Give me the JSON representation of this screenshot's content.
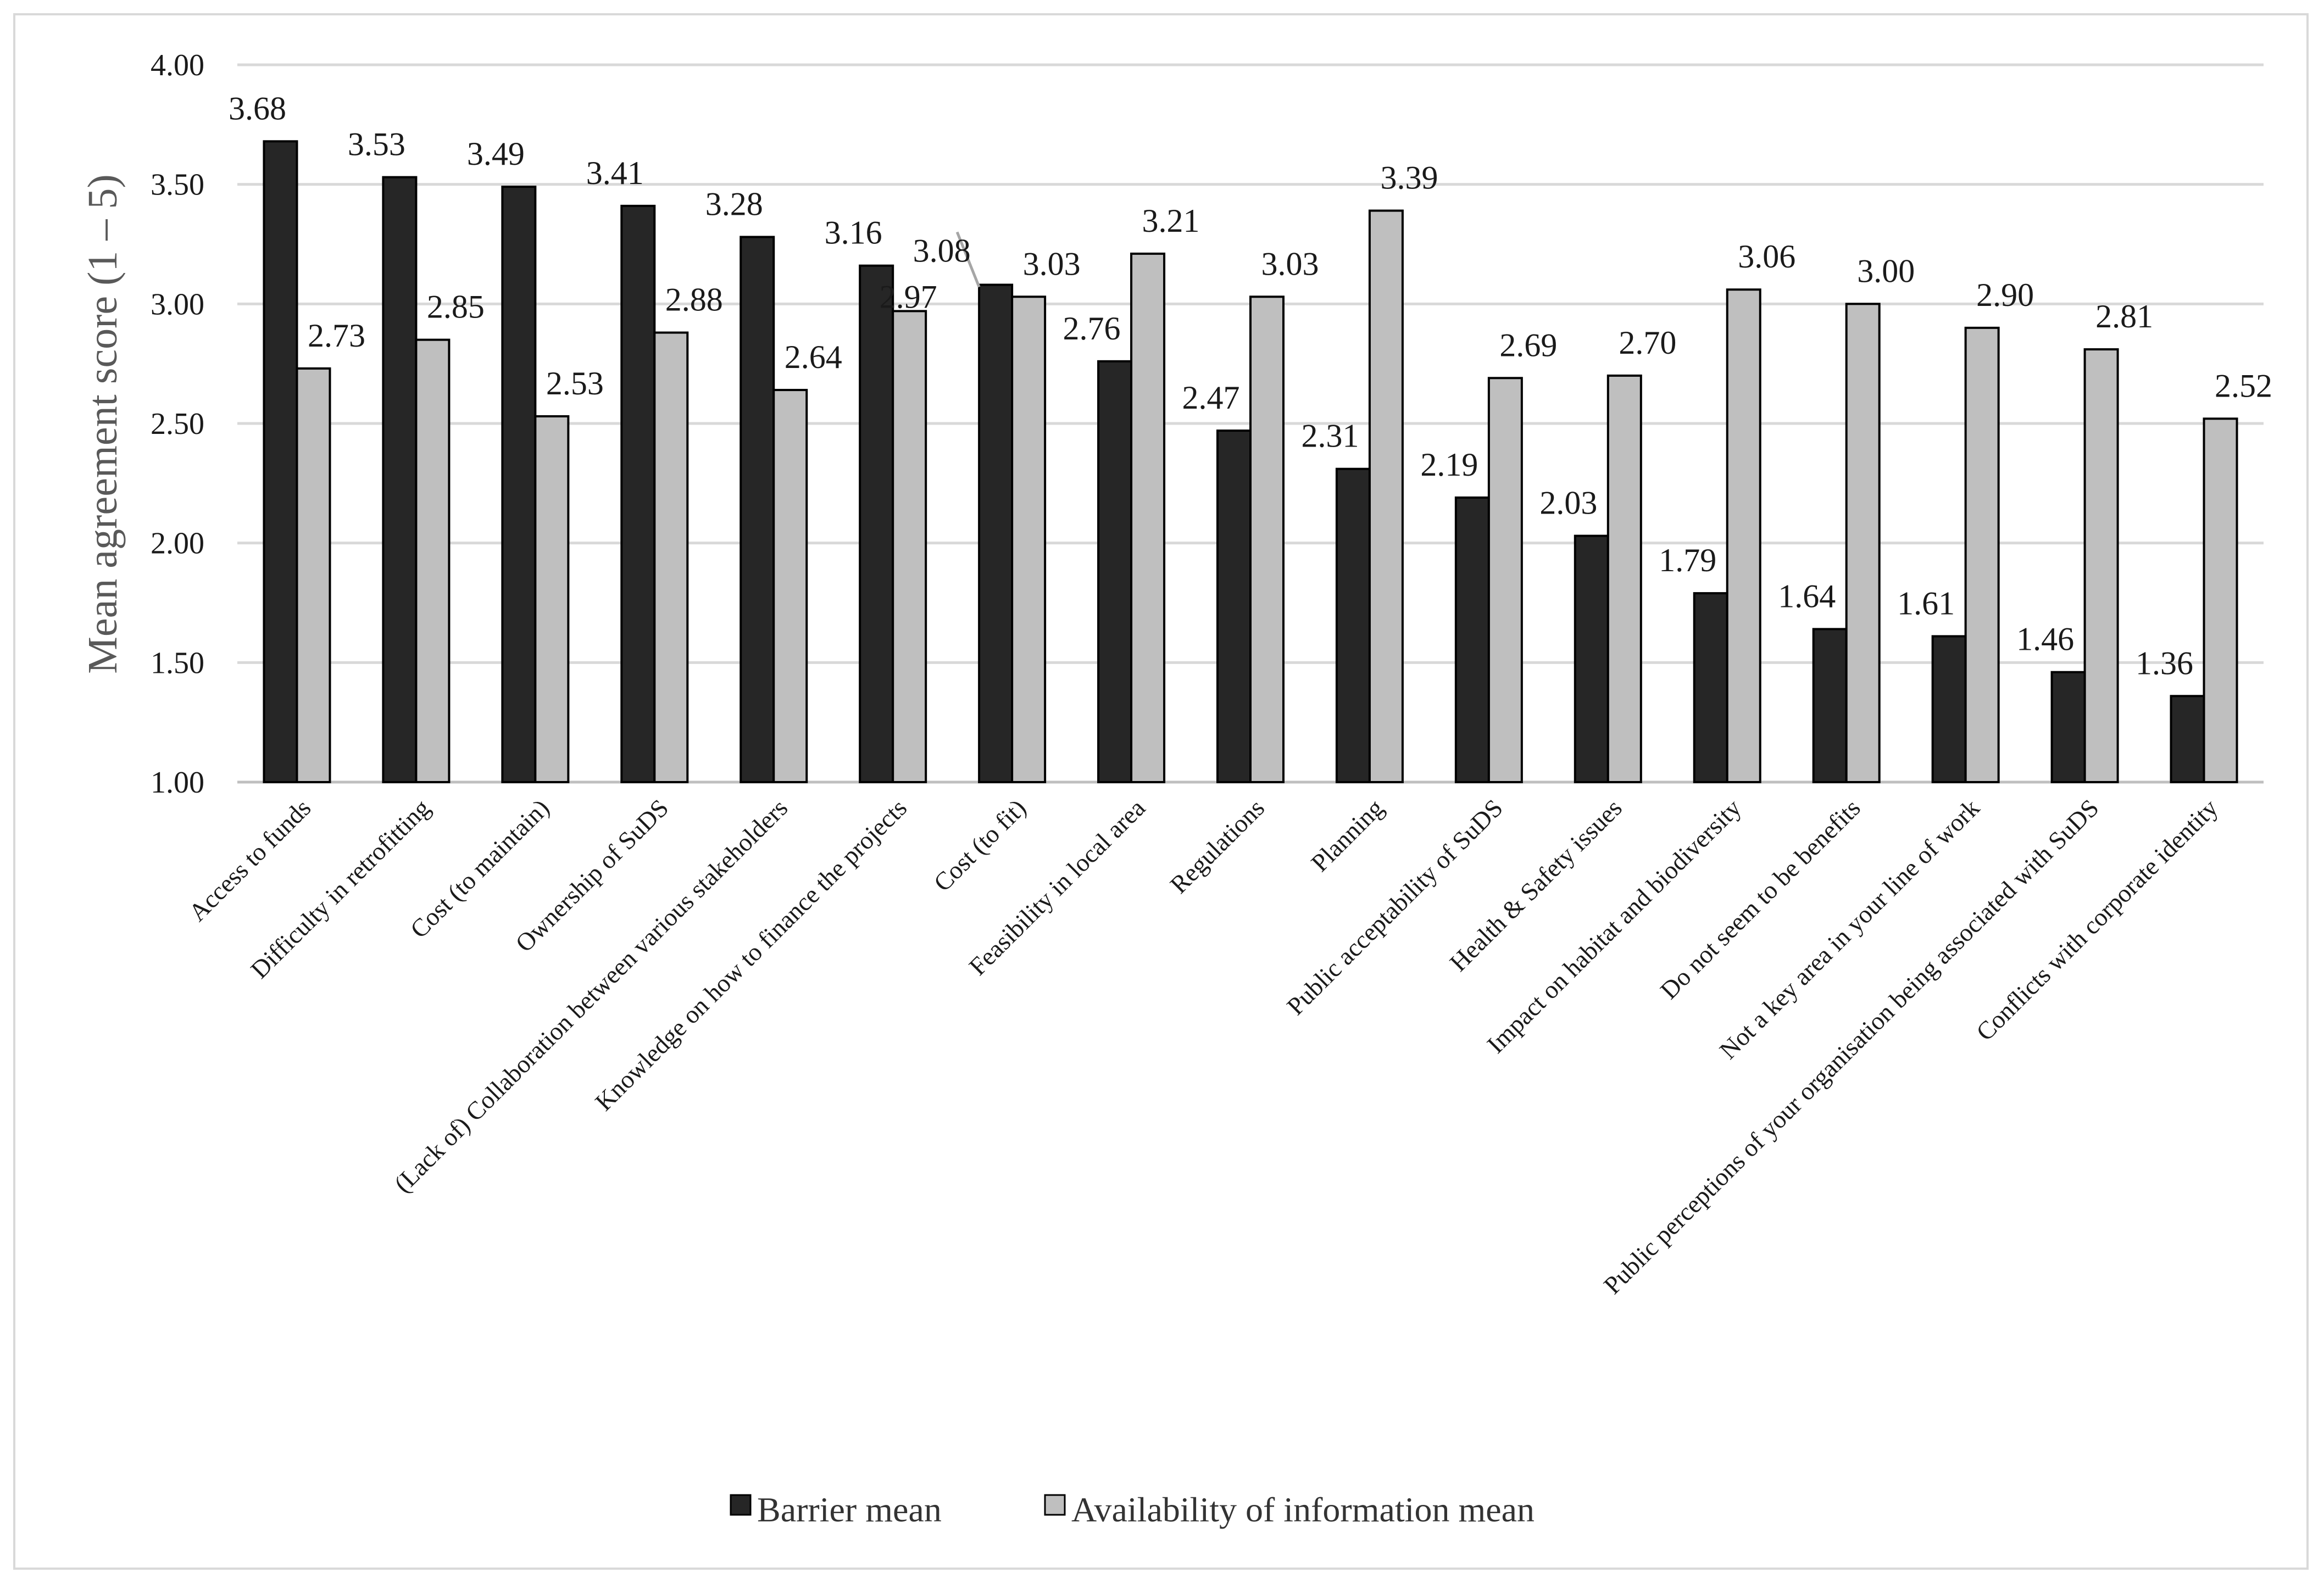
{
  "chart_data": {
    "type": "bar",
    "title": "",
    "xlabel": "",
    "ylabel": "Mean agreement score (1 – 5)",
    "ylim": [
      1.0,
      4.0
    ],
    "yticks": [
      "1.00",
      "1.50",
      "2.00",
      "2.50",
      "3.00",
      "3.50",
      "4.00"
    ],
    "grid": true,
    "legend_position": "bottom",
    "categories": [
      "Access to funds",
      "Difficulty in retrofitting",
      "Cost (to maintain)",
      "Ownership of SuDS",
      "(Lack of) Collaboration between various stakeholders",
      "Knowledge on how to finance the projects",
      "Cost (to fit)",
      "Feasibility in local area",
      "Regulations",
      "Planning",
      "Public acceptability of SuDS",
      "Health & Safety issues",
      "Impact on habitat and biodiversity",
      "Do not seem to be benefits",
      "Not a key area in your line of work",
      "Public perceptions of your organisation being associated with SuDS",
      "Conflicts with corporate identity"
    ],
    "series": [
      {
        "name": "Barrier mean",
        "color": "#262626",
        "values": [
          3.68,
          3.53,
          3.49,
          3.41,
          3.28,
          3.16,
          3.08,
          2.76,
          2.47,
          2.31,
          2.19,
          2.03,
          1.79,
          1.64,
          1.61,
          1.46,
          1.36
        ],
        "labels": [
          "3.68",
          "3.53",
          "3.49",
          "3.41",
          "3.28",
          "3.16",
          "3.08",
          "2.76",
          "2.47",
          "2.31",
          "2.19",
          "2.03",
          "1.79",
          "1.64",
          "1.61",
          "1.46",
          "1.36"
        ]
      },
      {
        "name": "Availability of information mean",
        "color": "#bfbfbf",
        "values": [
          2.73,
          2.85,
          2.53,
          2.88,
          2.64,
          2.97,
          3.03,
          3.21,
          3.03,
          3.39,
          2.69,
          2.7,
          3.06,
          3.0,
          2.9,
          2.81,
          2.52
        ],
        "labels": [
          "2.73",
          "2.85",
          "2.53",
          "2.88",
          "2.64",
          "2.97",
          "3.03",
          "3.21",
          "3.03",
          "3.39",
          "2.69",
          "2.70",
          "3.06",
          "3.00",
          "2.90",
          "2.81",
          "2.52"
        ]
      }
    ]
  }
}
